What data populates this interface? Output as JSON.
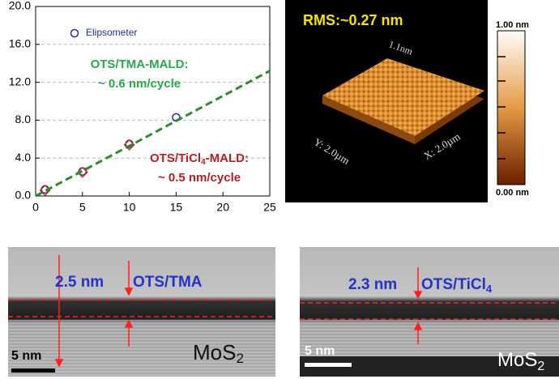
{
  "chart_data": {
    "type": "scatter",
    "xlim": [
      0,
      25
    ],
    "xticks": [
      0,
      5,
      10,
      15,
      20,
      25
    ],
    "ylim": [
      0,
      20
    ],
    "yticks": [
      {
        "value": 0,
        "label": "0.0"
      },
      {
        "value": 4,
        "label": "4.0"
      },
      {
        "value": 8,
        "label": "8.0"
      },
      {
        "value": 12,
        "label": "12.0"
      },
      {
        "value": 16,
        "label": "16.0"
      },
      {
        "value": 20,
        "label": "20.0"
      }
    ],
    "grid": true,
    "legend": "upper left",
    "series": [
      {
        "name": "Elipsometer",
        "color": "#1f2f9f",
        "marker": "circle",
        "x": [
          1,
          5,
          10,
          15
        ],
        "values": [
          0.7,
          2.6,
          5.5,
          8.3
        ]
      },
      {
        "color": "#c0392b",
        "marker": "diamond",
        "x": [
          1,
          5,
          10
        ],
        "values": [
          0.6,
          2.5,
          5.4
        ]
      },
      {
        "color": "#2e8b2e",
        "marker": "dashed-line",
        "x": [
          0,
          25
        ],
        "values": [
          0,
          13.2
        ]
      }
    ],
    "annotations": [
      {
        "text": [
          "OTS/TMA-MALD:"
        ],
        "color": "#2aa84a"
      },
      {
        "text": [
          "~ 0.6 nm/cycle"
        ],
        "color": "#2aa84a"
      },
      {
        "text": [
          "OTS/TiCl",
          "4",
          "-MALD:"
        ],
        "color": "#b22222"
      },
      {
        "text": [
          "~ 0.5 nm/cycle"
        ],
        "color": "#b22222"
      }
    ]
  },
  "afm": {
    "rms": "RMS:~0.27 nm",
    "z_label": "1.1nm",
    "y_label": "Y: 2.0µm",
    "x_label": "X: 2.0µm",
    "scale_max": "1.00 nm",
    "scale_min": "0.00 nm"
  },
  "tem": [
    {
      "thickness": "2.5 nm",
      "label": [
        "OTS/TMA"
      ],
      "substrate": [
        "MoS",
        "2"
      ],
      "scale_bar": "5 nm"
    },
    {
      "thickness": "2.3 nm",
      "label": [
        "OTS/TiCl",
        "4"
      ],
      "substrate": [
        "MoS",
        "2"
      ],
      "scale_bar": "5 nm"
    }
  ]
}
